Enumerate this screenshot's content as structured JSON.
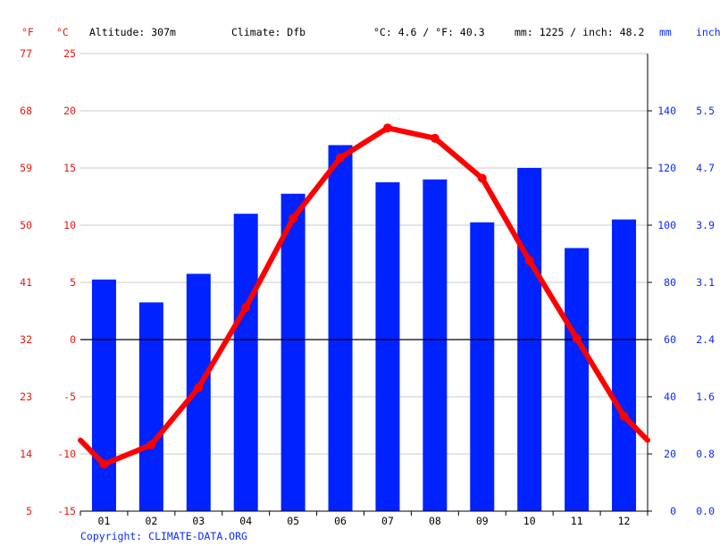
{
  "header": {
    "f_unit": "°F",
    "c_unit": "°C",
    "altitude": "Altitude: 307m",
    "climate": "Climate: Dfb",
    "temp_avg": "°C: 4.6 / °F: 40.3",
    "precip_total": "mm: 1225 / inch: 48.2",
    "mm_unit": "mm",
    "inch_unit": "inch"
  },
  "copyright": "Copyright: CLIMATE-DATA.ORG",
  "colors": {
    "temperature": "#ff0000",
    "precipitation": "#0022ff",
    "temp_axis": "#e8170e",
    "precip_axis": "#0a2bff"
  },
  "chart_data": {
    "type": "bar",
    "categories": [
      "01",
      "02",
      "03",
      "04",
      "05",
      "06",
      "07",
      "08",
      "09",
      "10",
      "11",
      "12"
    ],
    "series": [
      {
        "axis": "mm",
        "kind": "bar",
        "values": [
          81,
          73,
          83,
          104,
          111,
          128,
          115,
          116,
          101,
          120,
          92,
          102
        ]
      },
      {
        "axis": "°C",
        "kind": "line",
        "values": [
          -10.9,
          -9.2,
          -4.2,
          2.8,
          10.6,
          15.9,
          18.5,
          17.6,
          14.1,
          6.9,
          0.1,
          -6.7
        ]
      }
    ],
    "ylim_c": [
      -15,
      25
    ],
    "ylim_mm": [
      0,
      160
    ],
    "y_ticks_c": [
      "-15",
      "-10",
      "-5",
      "0",
      "5",
      "10",
      "15",
      "20",
      "25"
    ],
    "y_ticks_f": [
      "5",
      "14",
      "23",
      "32",
      "41",
      "50",
      "59",
      "68",
      "77"
    ],
    "y_ticks_mm": [
      "0",
      "20",
      "40",
      "60",
      "80",
      "100",
      "120",
      "140"
    ],
    "y_ticks_inch": [
      "0.0",
      "0.8",
      "1.6",
      "2.4",
      "3.1",
      "3.9",
      "4.7",
      "5.5"
    ],
    "grid": true,
    "zero_line": true
  }
}
